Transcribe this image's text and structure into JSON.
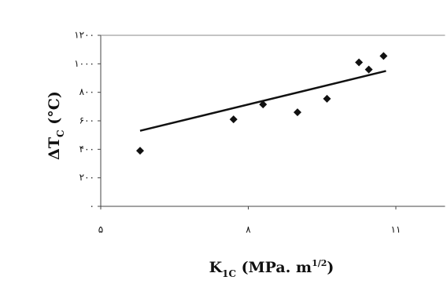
{
  "chart_data": {
    "type": "scatter",
    "x_label": [
      "K",
      "1C",
      " (MPa. m",
      "1/2",
      ")"
    ],
    "y_label": [
      "ΔT",
      "C",
      " (°C)"
    ],
    "x": [
      5.8,
      7.7,
      8.3,
      9.0,
      9.6,
      10.25,
      10.45,
      10.75
    ],
    "values": [
      390,
      610,
      715,
      660,
      755,
      1010,
      960,
      1055
    ],
    "color": "#111111",
    "trendline": {
      "x": [
        5.8,
        10.8
      ],
      "y": [
        530,
        950
      ]
    },
    "xlim": [
      5,
      12
    ],
    "ylim": [
      0,
      1200
    ],
    "xticks": [
      {
        "value": 5,
        "label": "۵"
      },
      {
        "value": 8,
        "label": "۸"
      },
      {
        "value": 11,
        "label": "۱۱"
      }
    ],
    "yticks": [
      {
        "value": 0,
        "label": "۰"
      },
      {
        "value": 200,
        "label": "۲۰۰"
      },
      {
        "value": 400,
        "label": "۴۰۰"
      },
      {
        "value": 600,
        "label": "۶۰۰"
      },
      {
        "value": 800,
        "label": "۸۰۰"
      },
      {
        "value": 1000,
        "label": "۱۰۰۰"
      },
      {
        "value": 1200,
        "label": "۱۲۰۰"
      }
    ]
  }
}
